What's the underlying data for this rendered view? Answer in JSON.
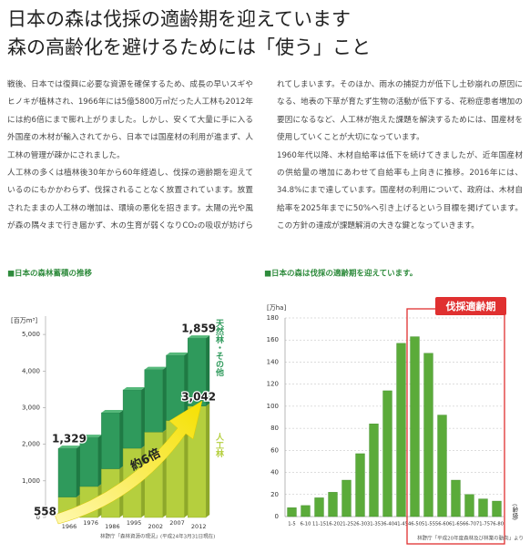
{
  "header": {
    "title_lines": [
      "日本の森は伐採の適齢期を迎えています",
      "森の高齢化を避けるためには「使う」こと"
    ]
  },
  "body": {
    "paragraphs": [
      "戦後、日本では復興に必要な資源を確保するため、成長の早いスギやヒノキが植林され、1966年には5億5800万㎥だった人工林も2012年には約6倍にまで膨れ上がりました。しかし、安くて大量に手に入る外国産の木材が輸入されてから、日本では国産材の利用が進まず、人工林の管理が疎かにされました。",
      "人工林の多くは植林後30年から60年経過し、伐採の適齢期を迎えているのにもかかわらず、伐採されることなく放置されています。放置されたままの人工林の増加は、環境の悪化を招きます。太陽の光や風が森の隅々まで行き届かず、木の生育が弱くなりCO₂の吸収が妨げられてしまいます。そのほか、雨水の捕捉力が低下し土砂崩れの原因になる、地表の下草が育たず生物の活動が低下する、花粉症患者増加の要因になるなど、人工林が抱えた課題を解決するためには、国産材を使用していくことが大切になっています。",
      "1960年代以降、木材自給率は低下を続けてきましたが、近年国産材の供給量の増加にあわせて自給率も上向きに推移。2016年には、34.8%にまで達しています。国産材の利用について、政府は、木材自給率を2025年までに50%へ引き上げるという目標を掲げています。この方針の達成が課題解消の大きな鍵となっていきます。"
    ]
  },
  "chart_data": [
    {
      "type": "stacked-bar",
      "title": "■日本の森林蓄積の推移",
      "y_label": "[百万m³]",
      "categories": [
        "1966",
        "1976",
        "1986",
        "1995",
        "2002",
        "2007",
        "2012"
      ],
      "series": [
        {
          "name": "人工林",
          "color": "#b5cf3e",
          "values": [
            558,
            847,
            1330,
            1891,
            2335,
            2651,
            3042
          ],
          "value_labels": [
            "558",
            null,
            null,
            null,
            null,
            null,
            "3,042"
          ]
        },
        {
          "name": "天然林・その他",
          "color": "#2f9a5c",
          "values": [
            1329,
            1340,
            1532,
            1594,
            1705,
            1781,
            1859
          ],
          "value_labels": [
            "1,329",
            null,
            null,
            null,
            null,
            null,
            "1,859"
          ]
        }
      ],
      "ylim": [
        0,
        5500
      ],
      "yticks": [
        0,
        {
          "value": 1000,
          "label": "1,000"
        },
        {
          "value": 2000,
          "label": "2,000"
        },
        {
          "value": 3000,
          "label": "3,000"
        },
        {
          "value": 4000,
          "label": "4,000"
        },
        {
          "value": 5000,
          "label": "5,000"
        }
      ],
      "annotation": "約6倍",
      "source": "林野庁「森林資源の現況」(平成24年3月31日現在)"
    },
    {
      "type": "bar",
      "title": "■日本の森は伐採の適齢期を迎えています。",
      "y_label": "[万ha]",
      "x_label": "(齢級)",
      "categories": [
        "1-5",
        "6-10",
        "11-15",
        "16-20",
        "21-25",
        "26-30",
        "31-35",
        "36-40",
        "41-45",
        "46-50",
        "51-55",
        "56-60",
        "61-65",
        "66-70",
        "71-75",
        "76-80"
      ],
      "values": [
        8,
        10,
        17,
        22,
        33,
        57,
        84,
        114,
        157,
        163,
        148,
        92,
        33,
        20,
        16,
        14
      ],
      "color": "#5bab3a",
      "ylim": [
        0,
        180
      ],
      "yticks": [
        0,
        20,
        40,
        60,
        80,
        100,
        120,
        140,
        160,
        180
      ],
      "grid": true,
      "highlight": {
        "label": "伐採適齢期",
        "categories": [
          "46-50",
          "76-80"
        ]
      },
      "source": "林野庁「平成20年度森林及び林業の動向」より"
    }
  ]
}
